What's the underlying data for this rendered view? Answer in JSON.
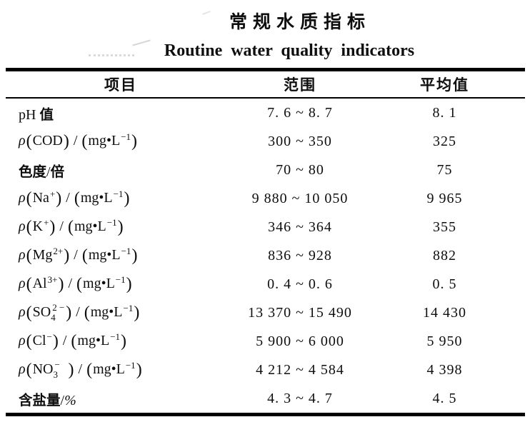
{
  "title": "常规水质指标",
  "subtitle": "Routine water quality indicators",
  "colors": {
    "text": "#0e0e0e",
    "rule": "#000000",
    "background": "#ffffff"
  },
  "table": {
    "columns": [
      "项目",
      "范围",
      "平均值"
    ],
    "rows": [
      {
        "item_text": "pH 值",
        "item": [
          [
            "t",
            "pH "
          ],
          [
            "c",
            "值"
          ]
        ],
        "range": "7. 6 ~ 8. 7",
        "avg": "8. 1"
      },
      {
        "item_text": "ρ(COD)/(mg•L⁻¹)",
        "item": [
          [
            "i",
            "ρ"
          ],
          [
            "p",
            "("
          ],
          [
            "t",
            "COD"
          ],
          [
            "p",
            ")"
          ],
          [
            "t",
            " / "
          ],
          [
            "p",
            "("
          ],
          [
            "t",
            "mg•L"
          ],
          [
            "s",
            "−1"
          ],
          [
            "p",
            ")"
          ]
        ],
        "range": "300 ~ 350",
        "avg": "325"
      },
      {
        "item_text": "色度/倍",
        "item": [
          [
            "c",
            "色度"
          ],
          [
            "t",
            "/"
          ],
          [
            "c",
            "倍"
          ]
        ],
        "range": "70 ~ 80",
        "avg": "75"
      },
      {
        "item_text": "ρ(Na⁺)/(mg•L⁻¹)",
        "item": [
          [
            "i",
            "ρ"
          ],
          [
            "p",
            "("
          ],
          [
            "t",
            "Na"
          ],
          [
            "s",
            "+"
          ],
          [
            "p",
            ")"
          ],
          [
            "t",
            " / "
          ],
          [
            "p",
            "("
          ],
          [
            "t",
            "mg•L"
          ],
          [
            "s",
            "−1"
          ],
          [
            "p",
            ")"
          ]
        ],
        "range": "9 880 ~ 10 050",
        "avg": "9 965"
      },
      {
        "item_text": "ρ(K⁺)/(mg•L⁻¹)",
        "item": [
          [
            "i",
            "ρ"
          ],
          [
            "p",
            "("
          ],
          [
            "t",
            "K"
          ],
          [
            "s",
            "+"
          ],
          [
            "p",
            ")"
          ],
          [
            "t",
            " / "
          ],
          [
            "p",
            "("
          ],
          [
            "t",
            "mg•L"
          ],
          [
            "s",
            "−1"
          ],
          [
            "p",
            ")"
          ]
        ],
        "range": "346 ~ 364",
        "avg": "355"
      },
      {
        "item_text": "ρ(Mg²⁺)/(mg•L⁻¹)",
        "item": [
          [
            "i",
            "ρ"
          ],
          [
            "p",
            "("
          ],
          [
            "t",
            "Mg"
          ],
          [
            "s",
            "2+"
          ],
          [
            "p",
            ")"
          ],
          [
            "t",
            " / "
          ],
          [
            "p",
            "("
          ],
          [
            "t",
            "mg•L"
          ],
          [
            "s",
            "−1"
          ],
          [
            "p",
            ")"
          ]
        ],
        "range": "836 ~ 928",
        "avg": "882"
      },
      {
        "item_text": "ρ(Al³⁺)/(mg•L⁻¹)",
        "item": [
          [
            "i",
            "ρ"
          ],
          [
            "p",
            "("
          ],
          [
            "t",
            "Al"
          ],
          [
            "s",
            "3+"
          ],
          [
            "p",
            ")"
          ],
          [
            "t",
            " / "
          ],
          [
            "p",
            "("
          ],
          [
            "t",
            "mg•L"
          ],
          [
            "s",
            "−1"
          ],
          [
            "p",
            ")"
          ]
        ],
        "range": "0. 4 ~ 0. 6",
        "avg": "0. 5"
      },
      {
        "item_text": "ρ(SO₄²⁻)/(mg•L⁻¹)",
        "item": [
          [
            "i",
            "ρ"
          ],
          [
            "p",
            "("
          ],
          [
            "t",
            "SO"
          ],
          [
            "k",
            [
              "2 −",
              "4"
            ]
          ],
          [
            "p",
            ")"
          ],
          [
            "t",
            " / "
          ],
          [
            "p",
            "("
          ],
          [
            "t",
            "mg•L"
          ],
          [
            "s",
            "−1"
          ],
          [
            "p",
            ")"
          ]
        ],
        "range": "13 370 ~ 15 490",
        "avg": "14 430"
      },
      {
        "item_text": "ρ(Cl⁻)/(mg•L⁻¹)",
        "item": [
          [
            "i",
            "ρ"
          ],
          [
            "p",
            "("
          ],
          [
            "t",
            "Cl"
          ],
          [
            "s",
            "−"
          ],
          [
            "p",
            ")"
          ],
          [
            "t",
            " / "
          ],
          [
            "p",
            "("
          ],
          [
            "t",
            "mg•L"
          ],
          [
            "s",
            "−1"
          ],
          [
            "p",
            ")"
          ]
        ],
        "range": "5 900 ~ 6 000",
        "avg": "5 950"
      },
      {
        "item_text": "ρ(NO₃⁻)/(mg•L⁻¹)",
        "item": [
          [
            "i",
            "ρ"
          ],
          [
            "p",
            "("
          ],
          [
            "t",
            "NO"
          ],
          [
            "k",
            [
              "−",
              "3"
            ]
          ],
          [
            "p",
            ")"
          ],
          [
            "t",
            " / "
          ],
          [
            "p",
            "("
          ],
          [
            "t",
            "mg•L"
          ],
          [
            "s",
            "−1"
          ],
          [
            "p",
            ")"
          ]
        ],
        "range": "4 212 ~ 4 584",
        "avg": "4 398"
      },
      {
        "item_text": "含盐量/%",
        "item": [
          [
            "c",
            "含盐量"
          ],
          [
            "t",
            "/"
          ],
          [
            "i",
            "%"
          ]
        ],
        "range": "4. 3 ~ 4. 7",
        "avg": "4. 5"
      }
    ]
  }
}
